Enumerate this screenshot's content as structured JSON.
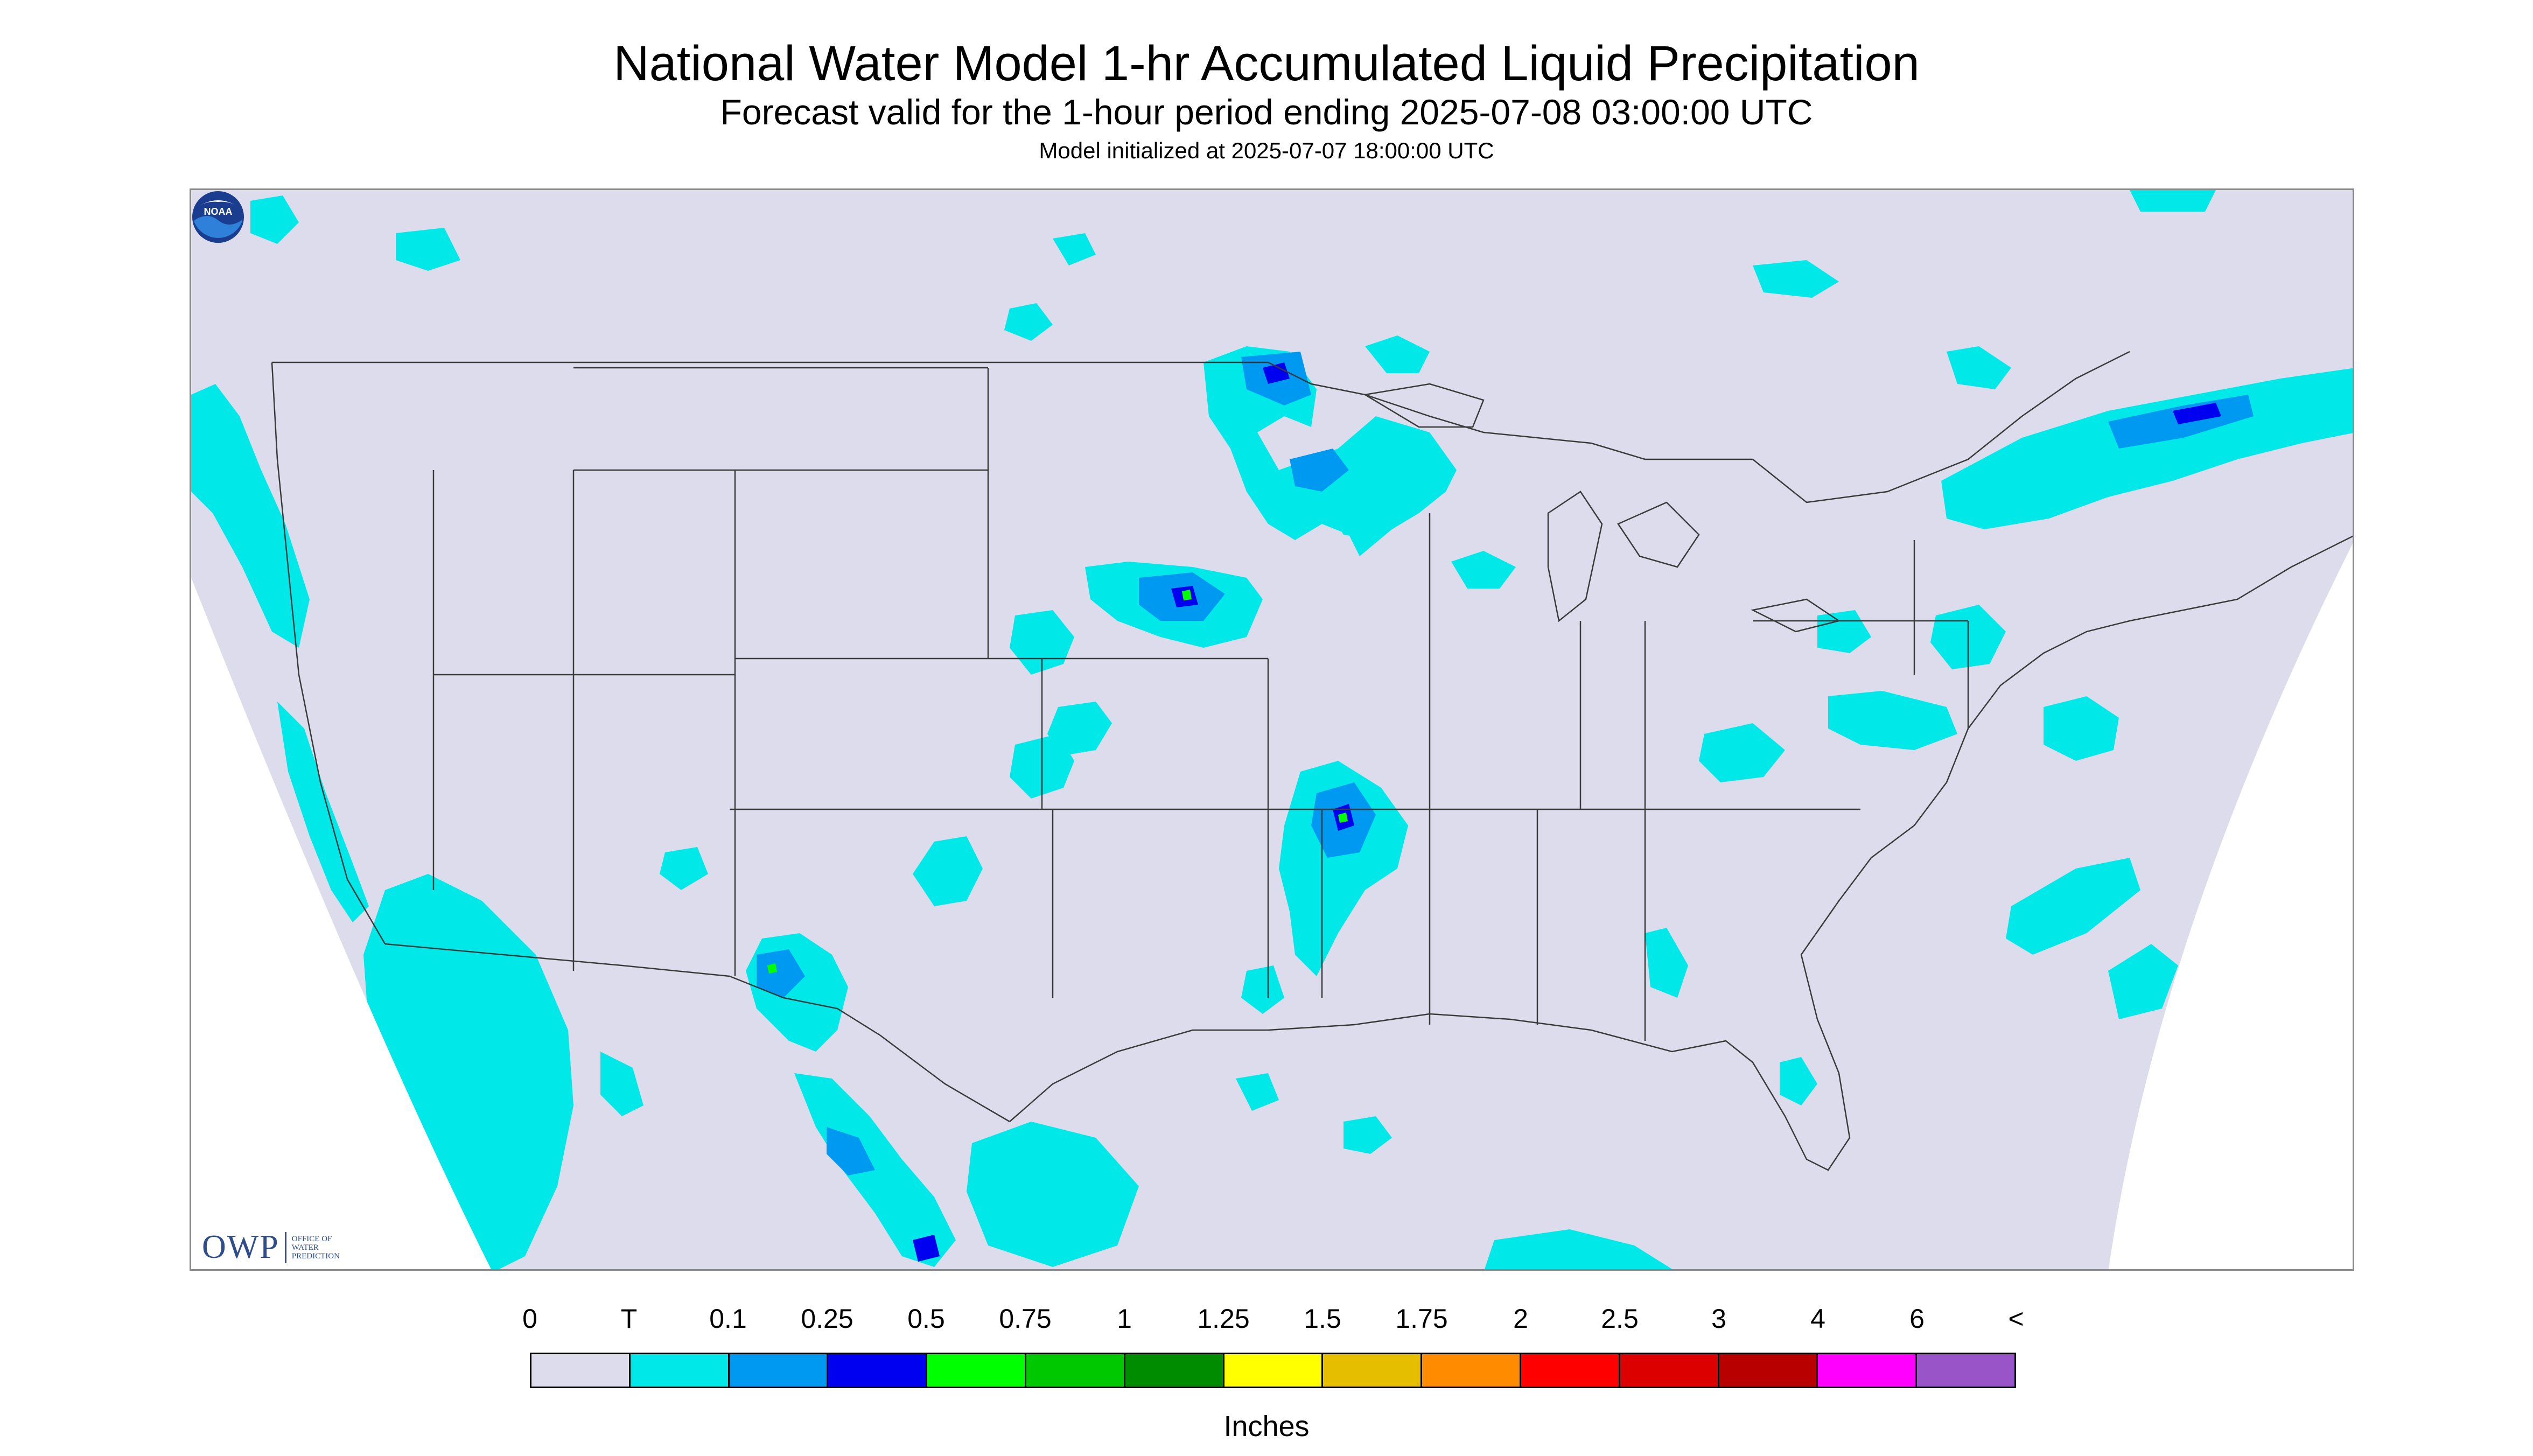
{
  "title": "National Water Model 1-hr Accumulated Liquid Precipitation",
  "subtitle": "Forecast valid for the 1-hour period ending 2025-07-08 03:00:00 UTC",
  "init_note": "Model initialized at 2025-07-07 18:00:00 UTC",
  "colors": {
    "background_fill": "#dcdcec",
    "outside_domain": "#ffffff",
    "boundaries": "#3a3a3a",
    "frame": "#8a8a8a"
  },
  "logos": {
    "owp": {
      "mark": "OWP",
      "lines": [
        "Office of",
        "Water",
        "Prediction"
      ],
      "icon": "owp-logo"
    },
    "noaa": {
      "text": "NOAA",
      "icon": "noaa-logo"
    }
  },
  "legend": {
    "ticks": [
      "0",
      "T",
      "0.1",
      "0.25",
      "0.5",
      "0.75",
      "1",
      "1.25",
      "1.5",
      "1.75",
      "2",
      "2.5",
      "3",
      "4",
      "6",
      "<"
    ],
    "colors": [
      "#dcdcec",
      "#00e8e8",
      "#0099f2",
      "#0000f0",
      "#00ff00",
      "#00c800",
      "#008c00",
      "#ffff00",
      "#e6be00",
      "#ff8c00",
      "#ff0000",
      "#dc0000",
      "#b90000",
      "#ff00ff",
      "#9955c8"
    ],
    "units": "Inches"
  }
}
